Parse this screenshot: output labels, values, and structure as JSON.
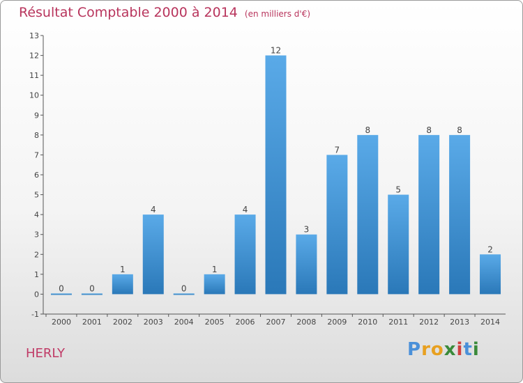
{
  "chart_data": {
    "type": "bar",
    "title": "Résultat Comptable 2000 à 2014",
    "subtitle": "(en milliers d'€)",
    "categories": [
      "2000",
      "2001",
      "2002",
      "2003",
      "2004",
      "2005",
      "2006",
      "2007",
      "2008",
      "2009",
      "2010",
      "2011",
      "2012",
      "2013",
      "2014"
    ],
    "values": [
      0,
      0,
      1,
      4,
      0,
      1,
      4,
      12,
      3,
      7,
      8,
      5,
      8,
      8,
      2
    ],
    "data_labels": [
      "0",
      "0",
      "1",
      "4",
      "0",
      "1",
      "4",
      "12",
      "3",
      "7",
      "8",
      "5",
      "8",
      "8",
      "2"
    ],
    "ylim": [
      -1,
      13
    ],
    "yticks": [
      "-1",
      "0",
      "1",
      "2",
      "3",
      "4",
      "5",
      "6",
      "7",
      "8",
      "9",
      "10",
      "11",
      "12",
      "13"
    ],
    "grid": false,
    "legend": "none",
    "xlabel": "",
    "ylabel": ""
  },
  "footer": {
    "commune": "HERLY",
    "brand": "Proxiti",
    "brand_letters": [
      "P",
      "r",
      "o",
      "x",
      "i",
      "t",
      "i"
    ]
  },
  "colors": {
    "title": "#b8345c",
    "bar_top": "#5aaae8",
    "bar_bottom": "#2a78b8",
    "axis": "#555555",
    "brand_letters": [
      "#4a90d9",
      "#e8a020",
      "#e8a020",
      "#3a8a3a",
      "#d04040",
      "#4a90d9",
      "#3a8a3a"
    ]
  }
}
